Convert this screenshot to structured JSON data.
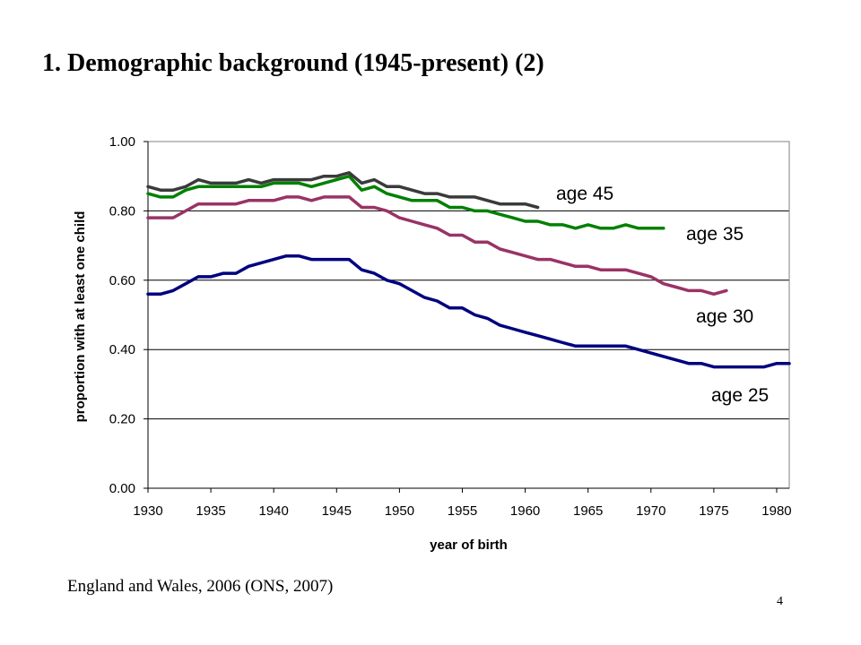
{
  "slide": {
    "title": "1. Demographic background (1945-present) (2)",
    "source": "England and Wales, 2006 (ONS, 2007)",
    "page_number": "4"
  },
  "chart_data": {
    "type": "line",
    "xlabel": "year of birth",
    "ylabel": "proportion with at least one child",
    "xlim": [
      1930,
      1981
    ],
    "ylim": [
      0,
      1
    ],
    "x_ticks": [
      "1930",
      "1935",
      "1940",
      "1945",
      "1950",
      "1955",
      "1960",
      "1965",
      "1970",
      "1975",
      "1980"
    ],
    "y_ticks": [
      "0.00",
      "0.20",
      "0.40",
      "0.60",
      "0.80",
      "1.00"
    ],
    "grid": "horizontal",
    "series": [
      {
        "name": "age 45",
        "color": "#3a3a3a",
        "x": [
          1930,
          1931,
          1932,
          1933,
          1934,
          1935,
          1936,
          1937,
          1938,
          1939,
          1940,
          1941,
          1942,
          1943,
          1944,
          1945,
          1946,
          1947,
          1948,
          1949,
          1950,
          1951,
          1952,
          1953,
          1954,
          1955,
          1956,
          1957,
          1958,
          1959,
          1960,
          1961
        ],
        "values": [
          0.87,
          0.86,
          0.86,
          0.87,
          0.89,
          0.88,
          0.88,
          0.88,
          0.89,
          0.88,
          0.89,
          0.89,
          0.89,
          0.89,
          0.9,
          0.9,
          0.91,
          0.88,
          0.89,
          0.87,
          0.87,
          0.86,
          0.85,
          0.85,
          0.84,
          0.84,
          0.84,
          0.83,
          0.82,
          0.82,
          0.82,
          0.81
        ]
      },
      {
        "name": "age 35",
        "color": "#008000",
        "x": [
          1930,
          1931,
          1932,
          1933,
          1934,
          1935,
          1936,
          1937,
          1938,
          1939,
          1940,
          1941,
          1942,
          1943,
          1944,
          1945,
          1946,
          1947,
          1948,
          1949,
          1950,
          1951,
          1952,
          1953,
          1954,
          1955,
          1956,
          1957,
          1958,
          1959,
          1960,
          1961,
          1962,
          1963,
          1964,
          1965,
          1966,
          1967,
          1968,
          1969,
          1970,
          1971
        ],
        "values": [
          0.85,
          0.84,
          0.84,
          0.86,
          0.87,
          0.87,
          0.87,
          0.87,
          0.87,
          0.87,
          0.88,
          0.88,
          0.88,
          0.87,
          0.88,
          0.89,
          0.9,
          0.86,
          0.87,
          0.85,
          0.84,
          0.83,
          0.83,
          0.83,
          0.81,
          0.81,
          0.8,
          0.8,
          0.79,
          0.78,
          0.77,
          0.77,
          0.76,
          0.76,
          0.75,
          0.76,
          0.75,
          0.75,
          0.76,
          0.75,
          0.75,
          0.75
        ]
      },
      {
        "name": "age 30",
        "color": "#993366",
        "x": [
          1930,
          1931,
          1932,
          1933,
          1934,
          1935,
          1936,
          1937,
          1938,
          1939,
          1940,
          1941,
          1942,
          1943,
          1944,
          1945,
          1946,
          1947,
          1948,
          1949,
          1950,
          1951,
          1952,
          1953,
          1954,
          1955,
          1956,
          1957,
          1958,
          1959,
          1960,
          1961,
          1962,
          1963,
          1964,
          1965,
          1966,
          1967,
          1968,
          1969,
          1970,
          1971,
          1972,
          1973,
          1974,
          1975,
          1976
        ],
        "values": [
          0.78,
          0.78,
          0.78,
          0.8,
          0.82,
          0.82,
          0.82,
          0.82,
          0.83,
          0.83,
          0.83,
          0.84,
          0.84,
          0.83,
          0.84,
          0.84,
          0.84,
          0.81,
          0.81,
          0.8,
          0.78,
          0.77,
          0.76,
          0.75,
          0.73,
          0.73,
          0.71,
          0.71,
          0.69,
          0.68,
          0.67,
          0.66,
          0.66,
          0.65,
          0.64,
          0.64,
          0.63,
          0.63,
          0.63,
          0.62,
          0.61,
          0.59,
          0.58,
          0.57,
          0.57,
          0.56,
          0.57
        ]
      },
      {
        "name": "age 25",
        "color": "#000080",
        "x": [
          1930,
          1931,
          1932,
          1933,
          1934,
          1935,
          1936,
          1937,
          1938,
          1939,
          1940,
          1941,
          1942,
          1943,
          1944,
          1945,
          1946,
          1947,
          1948,
          1949,
          1950,
          1951,
          1952,
          1953,
          1954,
          1955,
          1956,
          1957,
          1958,
          1959,
          1960,
          1961,
          1962,
          1963,
          1964,
          1965,
          1966,
          1967,
          1968,
          1969,
          1970,
          1971,
          1972,
          1973,
          1974,
          1975,
          1976,
          1977,
          1978,
          1979,
          1980,
          1981
        ],
        "values": [
          0.56,
          0.56,
          0.57,
          0.59,
          0.61,
          0.61,
          0.62,
          0.62,
          0.64,
          0.65,
          0.66,
          0.67,
          0.67,
          0.66,
          0.66,
          0.66,
          0.66,
          0.63,
          0.62,
          0.6,
          0.59,
          0.57,
          0.55,
          0.54,
          0.52,
          0.52,
          0.5,
          0.49,
          0.47,
          0.46,
          0.45,
          0.44,
          0.43,
          0.42,
          0.41,
          0.41,
          0.41,
          0.41,
          0.41,
          0.4,
          0.39,
          0.38,
          0.37,
          0.36,
          0.36,
          0.35,
          0.35,
          0.35,
          0.35,
          0.35,
          0.36,
          0.36
        ]
      }
    ]
  }
}
